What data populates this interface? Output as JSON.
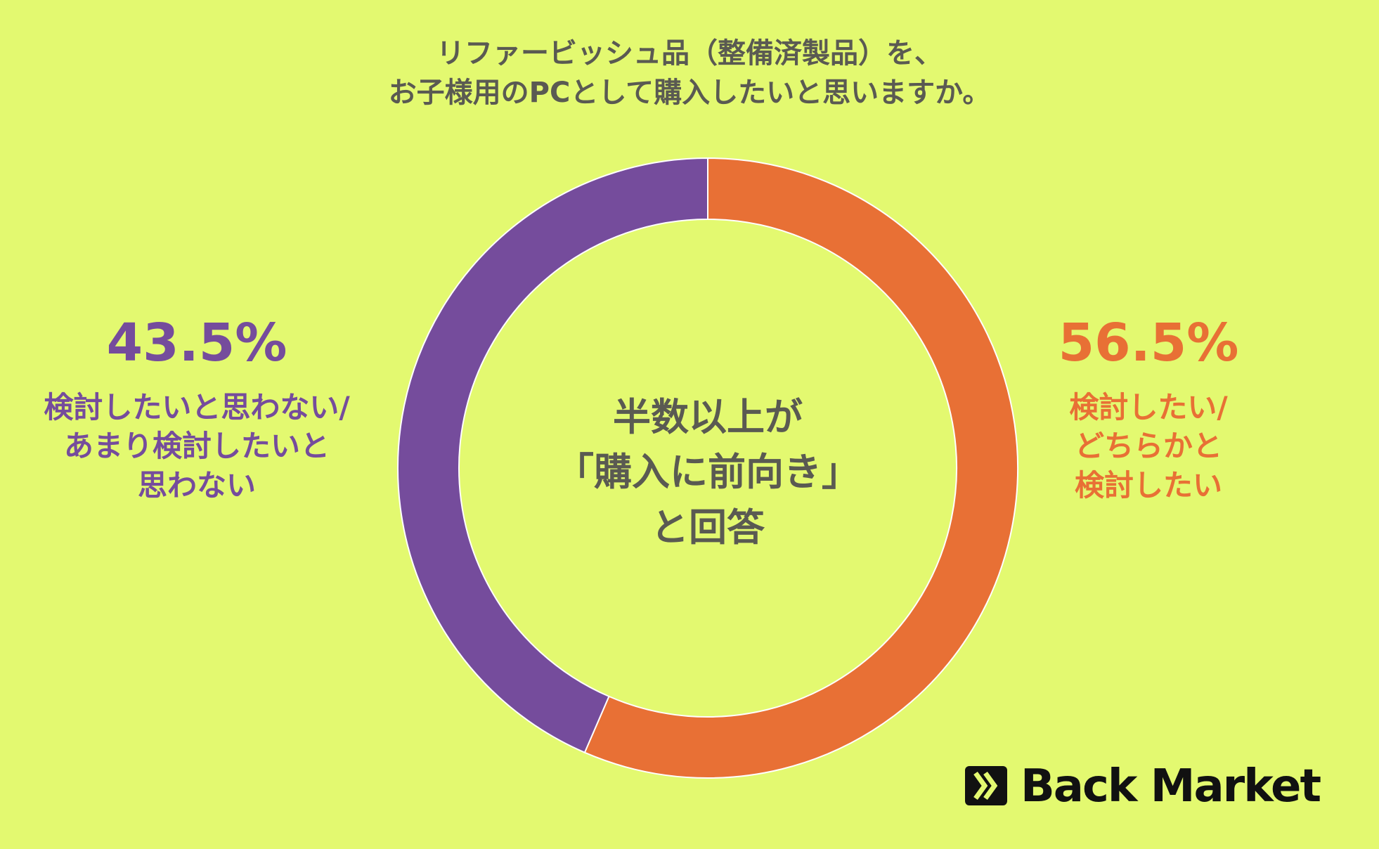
{
  "chart_data": {
    "type": "donut",
    "title": "リファービッシュ品（整備済製品）を、\nお子様用のPCとして購入したいと思いますか。",
    "categories": [
      "検討したい/\nどちらかと\n検討したい",
      "検討したいと思わない/\nあまり検討したいと\n思わない"
    ],
    "values": [
      56.5,
      43.5
    ],
    "value_labels": [
      "56.5%",
      "43.5%"
    ],
    "colors": [
      "#e87035",
      "#754c9c"
    ],
    "center_text": "半数以上が\n「購入に前向き」\nと回答",
    "brand": "Back Market"
  }
}
